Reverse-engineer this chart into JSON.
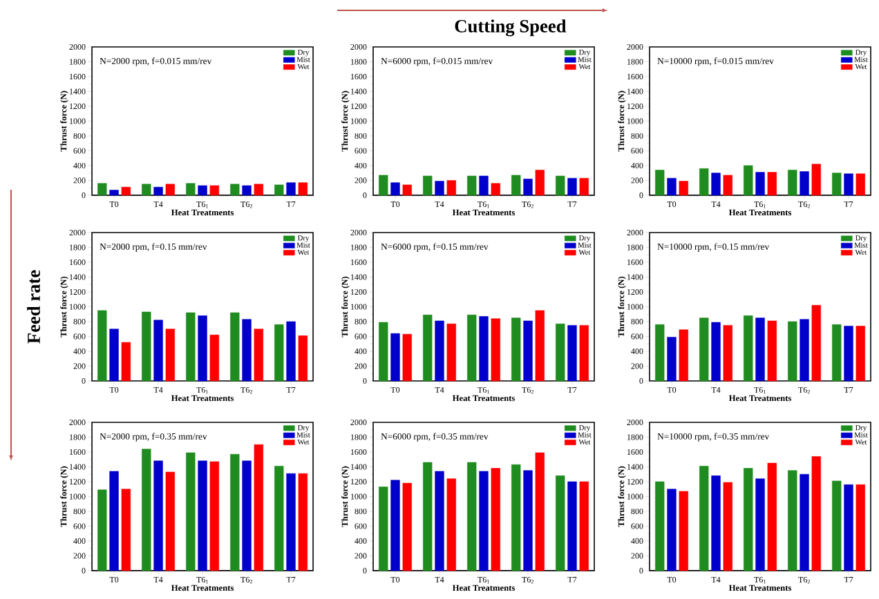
{
  "chart_data": [
    {
      "type": "bar",
      "title": "N=2000 rpm, f=0.015 mm/rev",
      "xlabel": "Heat Treatments",
      "ylabel": "Thrust force (N)",
      "categories": [
        "T0",
        "T4",
        "T6$_{1}$",
        "T6$_{2}$",
        "T7"
      ],
      "ylim": [
        0,
        2000
      ],
      "yticks": [
        0,
        200,
        400,
        600,
        800,
        1000,
        1200,
        1400,
        1600,
        1800,
        2000
      ],
      "legend": "top right",
      "series": [
        {
          "name": "Dry",
          "color": "#1e8c1e",
          "values": [
            160,
            150,
            160,
            150,
            140
          ]
        },
        {
          "name": "Mist",
          "color": "#0000cc",
          "values": [
            70,
            110,
            130,
            130,
            170
          ]
        },
        {
          "name": "Wet",
          "color": "#ff0000",
          "values": [
            110,
            150,
            130,
            150,
            170
          ]
        }
      ]
    },
    {
      "type": "bar",
      "title": "N=6000 rpm, f=0.015 mm/rev",
      "xlabel": "Heat Treatments",
      "ylabel": "Thrust force (N)",
      "categories": [
        "T0",
        "T4",
        "T6$_{1}$",
        "T6$_{2}$",
        "T7"
      ],
      "ylim": [
        0,
        2000
      ],
      "yticks": [
        0,
        200,
        400,
        600,
        800,
        1000,
        1200,
        1400,
        1600,
        1800,
        2000
      ],
      "legend": "top right",
      "annotations": [
        "Cutting Speed"
      ],
      "series": [
        {
          "name": "Dry",
          "color": "#1e8c1e",
          "values": [
            270,
            260,
            260,
            270,
            260
          ]
        },
        {
          "name": "Mist",
          "color": "#0000cc",
          "values": [
            170,
            190,
            260,
            220,
            230
          ]
        },
        {
          "name": "Wet",
          "color": "#ff0000",
          "values": [
            140,
            200,
            160,
            340,
            230
          ]
        }
      ]
    },
    {
      "type": "bar",
      "title": "N=10000 rpm, f=0.015 mm/rev",
      "xlabel": "Heat Treatments",
      "ylabel": "Thrust force (N)",
      "categories": [
        "T0",
        "T4",
        "T6$_{1}$",
        "T6$_{2}$",
        "T7"
      ],
      "ylim": [
        0,
        2000
      ],
      "yticks": [
        0,
        200,
        400,
        600,
        800,
        1000,
        1200,
        1400,
        1600,
        1800,
        2000
      ],
      "legend": "top right",
      "series": [
        {
          "name": "Dry",
          "color": "#1e8c1e",
          "values": [
            340,
            360,
            400,
            340,
            300
          ]
        },
        {
          "name": "Mist",
          "color": "#0000cc",
          "values": [
            230,
            300,
            310,
            320,
            290
          ]
        },
        {
          "name": "Wet",
          "color": "#ff0000",
          "values": [
            190,
            270,
            310,
            420,
            290
          ]
        }
      ]
    },
    {
      "type": "bar",
      "title": "N=2000 rpm, f=0.15 mm/rev",
      "xlabel": "Heat Treatments",
      "ylabel": "Thrust force (N)",
      "categories": [
        "T0",
        "T4",
        "T6$_{1}$",
        "T6$_{2}$",
        "T7"
      ],
      "ylim": [
        0,
        2000
      ],
      "yticks": [
        0,
        200,
        400,
        600,
        800,
        1000,
        1200,
        1400,
        1600,
        1800,
        2000
      ],
      "legend": "top right",
      "annotations": [
        "Feed  rate"
      ],
      "series": [
        {
          "name": "Dry",
          "color": "#1e8c1e",
          "values": [
            950,
            930,
            920,
            920,
            760
          ]
        },
        {
          "name": "Mist",
          "color": "#0000cc",
          "values": [
            700,
            820,
            880,
            830,
            800
          ]
        },
        {
          "name": "Wet",
          "color": "#ff0000",
          "values": [
            520,
            700,
            620,
            700,
            610
          ]
        }
      ]
    },
    {
      "type": "bar",
      "title": "N=6000 rpm, f=0.15 mm/rev",
      "xlabel": "Heat Treatments",
      "ylabel": "Thrust force (N)",
      "categories": [
        "T0",
        "T4",
        "T6$_{1}$",
        "T6$_{2}$",
        "T7"
      ],
      "ylim": [
        0,
        2000
      ],
      "yticks": [
        0,
        200,
        400,
        600,
        800,
        1000,
        1200,
        1400,
        1600,
        1800,
        2000
      ],
      "legend": "top right",
      "series": [
        {
          "name": "Dry",
          "color": "#1e8c1e",
          "values": [
            790,
            890,
            890,
            850,
            770
          ]
        },
        {
          "name": "Mist",
          "color": "#0000cc",
          "values": [
            640,
            810,
            870,
            810,
            750
          ]
        },
        {
          "name": "Wet",
          "color": "#ff0000",
          "values": [
            630,
            770,
            840,
            950,
            750
          ]
        }
      ]
    },
    {
      "type": "bar",
      "title": "N=10000 rpm, f=0.15 mm/rev",
      "xlabel": "Heat Treatments",
      "ylabel": "Thrust force (N)",
      "categories": [
        "T0",
        "T4",
        "T6$_{1}$",
        "T6$_{2}$",
        "T7"
      ],
      "ylim": [
        0,
        2000
      ],
      "yticks": [
        0,
        200,
        400,
        600,
        800,
        1000,
        1200,
        1400,
        1600,
        1800,
        2000
      ],
      "legend": "top right",
      "series": [
        {
          "name": "Dry",
          "color": "#1e8c1e",
          "values": [
            760,
            850,
            880,
            800,
            760
          ]
        },
        {
          "name": "Mist",
          "color": "#0000cc",
          "values": [
            590,
            790,
            850,
            830,
            740
          ]
        },
        {
          "name": "Wet",
          "color": "#ff0000",
          "values": [
            690,
            750,
            810,
            1020,
            740
          ]
        }
      ]
    },
    {
      "type": "bar",
      "title": "N=2000 rpm, f=0.35 mm/rev",
      "xlabel": "Heat Treatments",
      "ylabel": "Thrust force (N)",
      "categories": [
        "T0",
        "T4",
        "T6$_{1}$",
        "T6$_{2}$",
        "T7"
      ],
      "ylim": [
        0,
        2000
      ],
      "yticks": [
        0,
        200,
        400,
        600,
        800,
        1000,
        1200,
        1400,
        1600,
        1800,
        2000
      ],
      "legend": "top right",
      "series": [
        {
          "name": "Dry",
          "color": "#1e8c1e",
          "values": [
            1090,
            1640,
            1590,
            1570,
            1410
          ]
        },
        {
          "name": "Mist",
          "color": "#0000cc",
          "values": [
            1340,
            1480,
            1480,
            1480,
            1310
          ]
        },
        {
          "name": "Wet",
          "color": "#ff0000",
          "values": [
            1100,
            1330,
            1470,
            1700,
            1310
          ]
        }
      ]
    },
    {
      "type": "bar",
      "title": "N=6000 rpm, f=0.35 mm/rev",
      "xlabel": "Heat Treatments",
      "ylabel": "Thrust force (N)",
      "categories": [
        "T0",
        "T4",
        "T6$_{1}$",
        "T6$_{2}$",
        "T7"
      ],
      "ylim": [
        0,
        2000
      ],
      "yticks": [
        0,
        200,
        400,
        600,
        800,
        1000,
        1200,
        1400,
        1600,
        1800,
        2000
      ],
      "legend": "top right",
      "series": [
        {
          "name": "Dry",
          "color": "#1e8c1e",
          "values": [
            1130,
            1460,
            1460,
            1430,
            1280
          ]
        },
        {
          "name": "Mist",
          "color": "#0000cc",
          "values": [
            1220,
            1340,
            1340,
            1350,
            1200
          ]
        },
        {
          "name": "Wet",
          "color": "#ff0000",
          "values": [
            1180,
            1240,
            1380,
            1590,
            1200
          ]
        }
      ]
    },
    {
      "type": "bar",
      "title": "N=10000 rpm, f=0.35 mm/rev",
      "xlabel": "Heat Treatments",
      "ylabel": "Thrust force (N)",
      "categories": [
        "T0",
        "T4",
        "T6$_{1}$",
        "T6$_{2}$",
        "T7"
      ],
      "ylim": [
        0,
        2000
      ],
      "yticks": [
        0,
        200,
        400,
        600,
        800,
        1000,
        1200,
        1400,
        1600,
        1800,
        2000
      ],
      "legend": "top right",
      "series": [
        {
          "name": "Dry",
          "color": "#1e8c1e",
          "values": [
            1200,
            1410,
            1380,
            1350,
            1210
          ]
        },
        {
          "name": "Mist",
          "color": "#0000cc",
          "values": [
            1100,
            1280,
            1240,
            1300,
            1160
          ]
        },
        {
          "name": "Wet",
          "color": "#ff0000",
          "values": [
            1070,
            1190,
            1450,
            1540,
            1160
          ]
        }
      ]
    }
  ]
}
